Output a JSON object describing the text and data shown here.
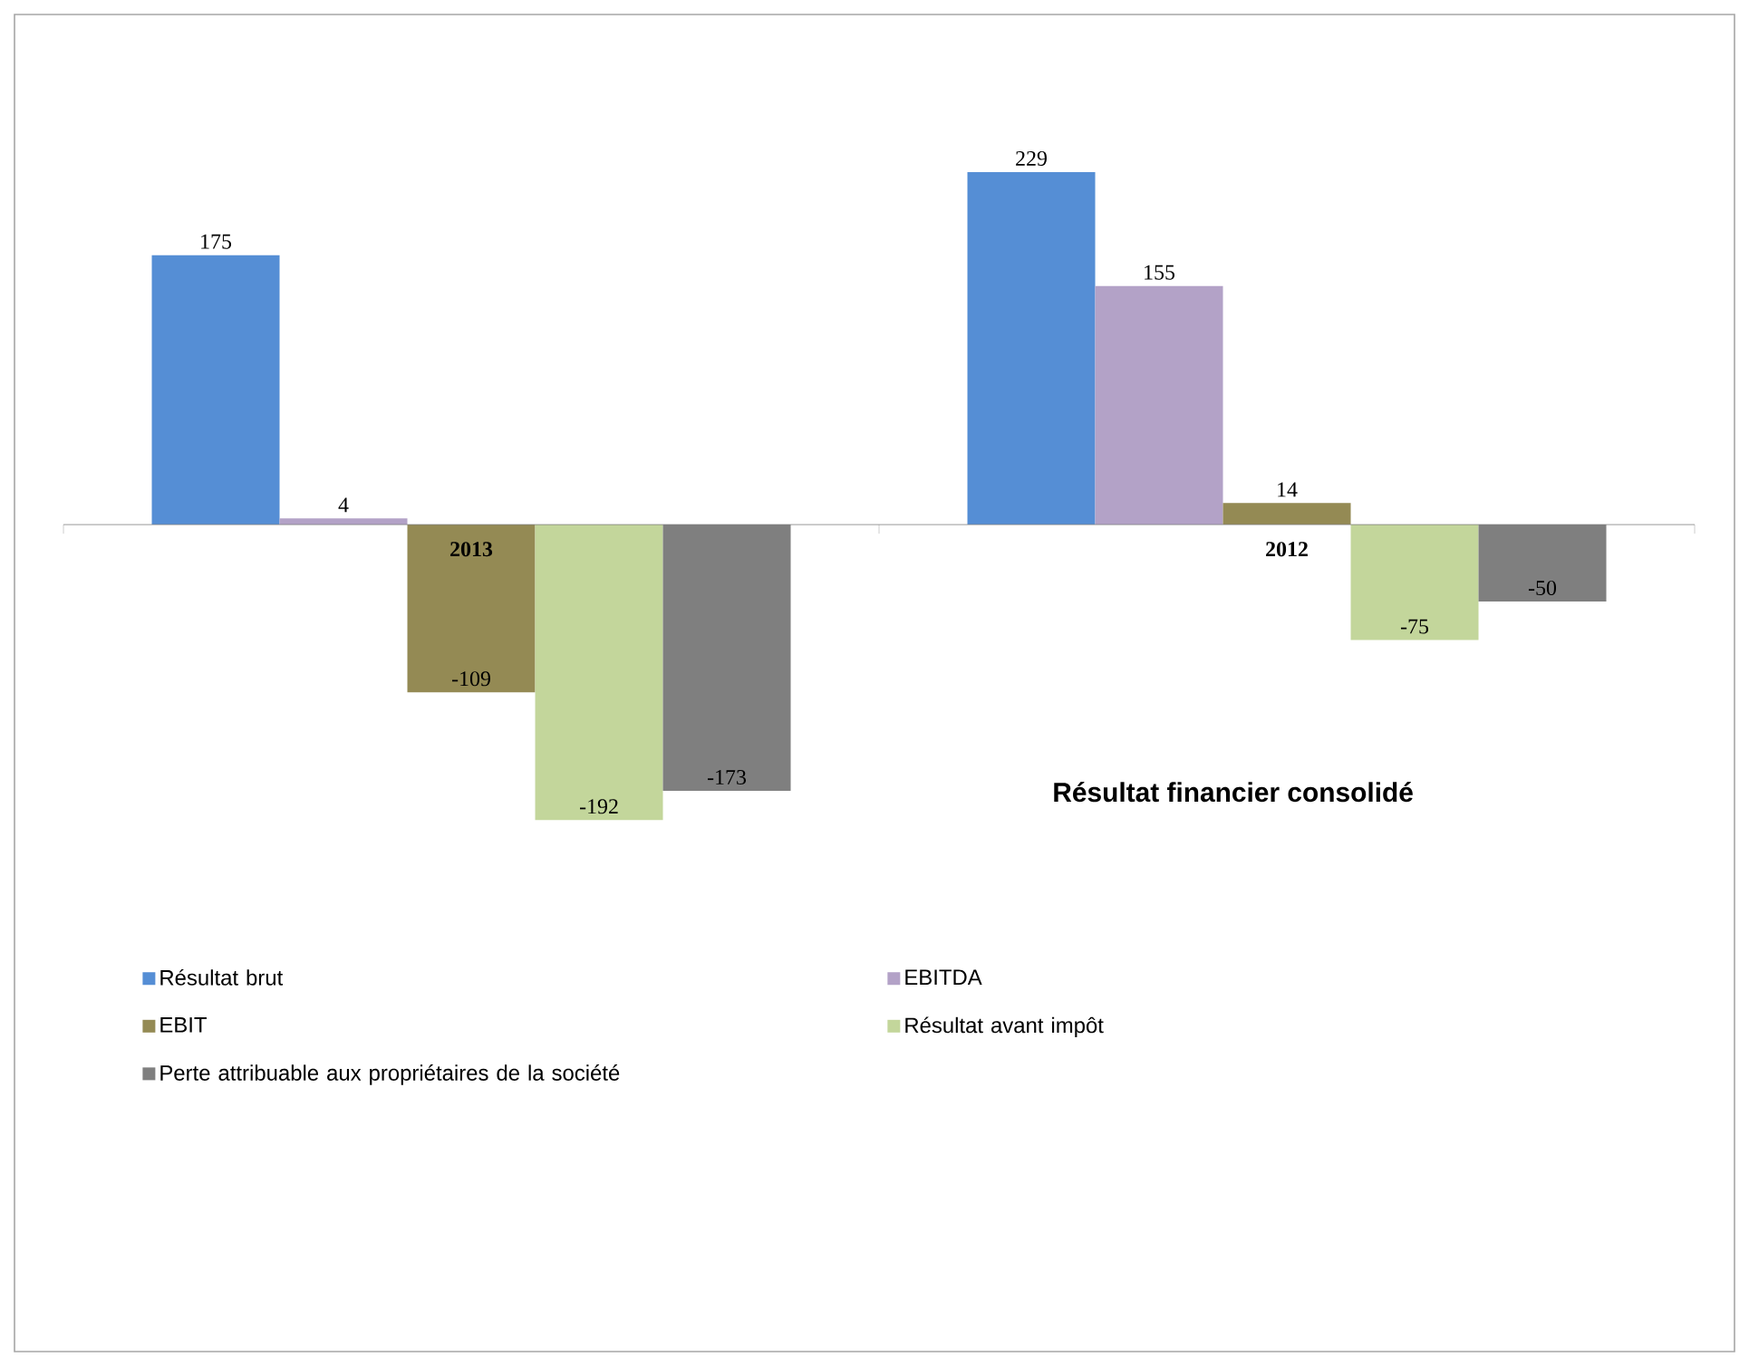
{
  "chart_data": {
    "type": "bar",
    "title": "Résultat financier consolidé",
    "categories": [
      "2013",
      "2012"
    ],
    "series": [
      {
        "name": "Résultat brut",
        "color": "#558ed5",
        "values": [
          175,
          229
        ]
      },
      {
        "name": "EBITDA",
        "color": "#b3a2c7",
        "values": [
          4,
          155
        ]
      },
      {
        "name": "EBIT",
        "color": "#948a54",
        "values": [
          -109,
          14
        ]
      },
      {
        "name": "Résultat avant impôt",
        "color": "#c3d69b",
        "values": [
          -192,
          -75
        ]
      },
      {
        "name": "Perte attribuable aux propriétaires de la société",
        "color": "#7f7f7f",
        "values": [
          -173,
          -50
        ]
      }
    ],
    "data_labels": true,
    "legend": "bottom"
  }
}
